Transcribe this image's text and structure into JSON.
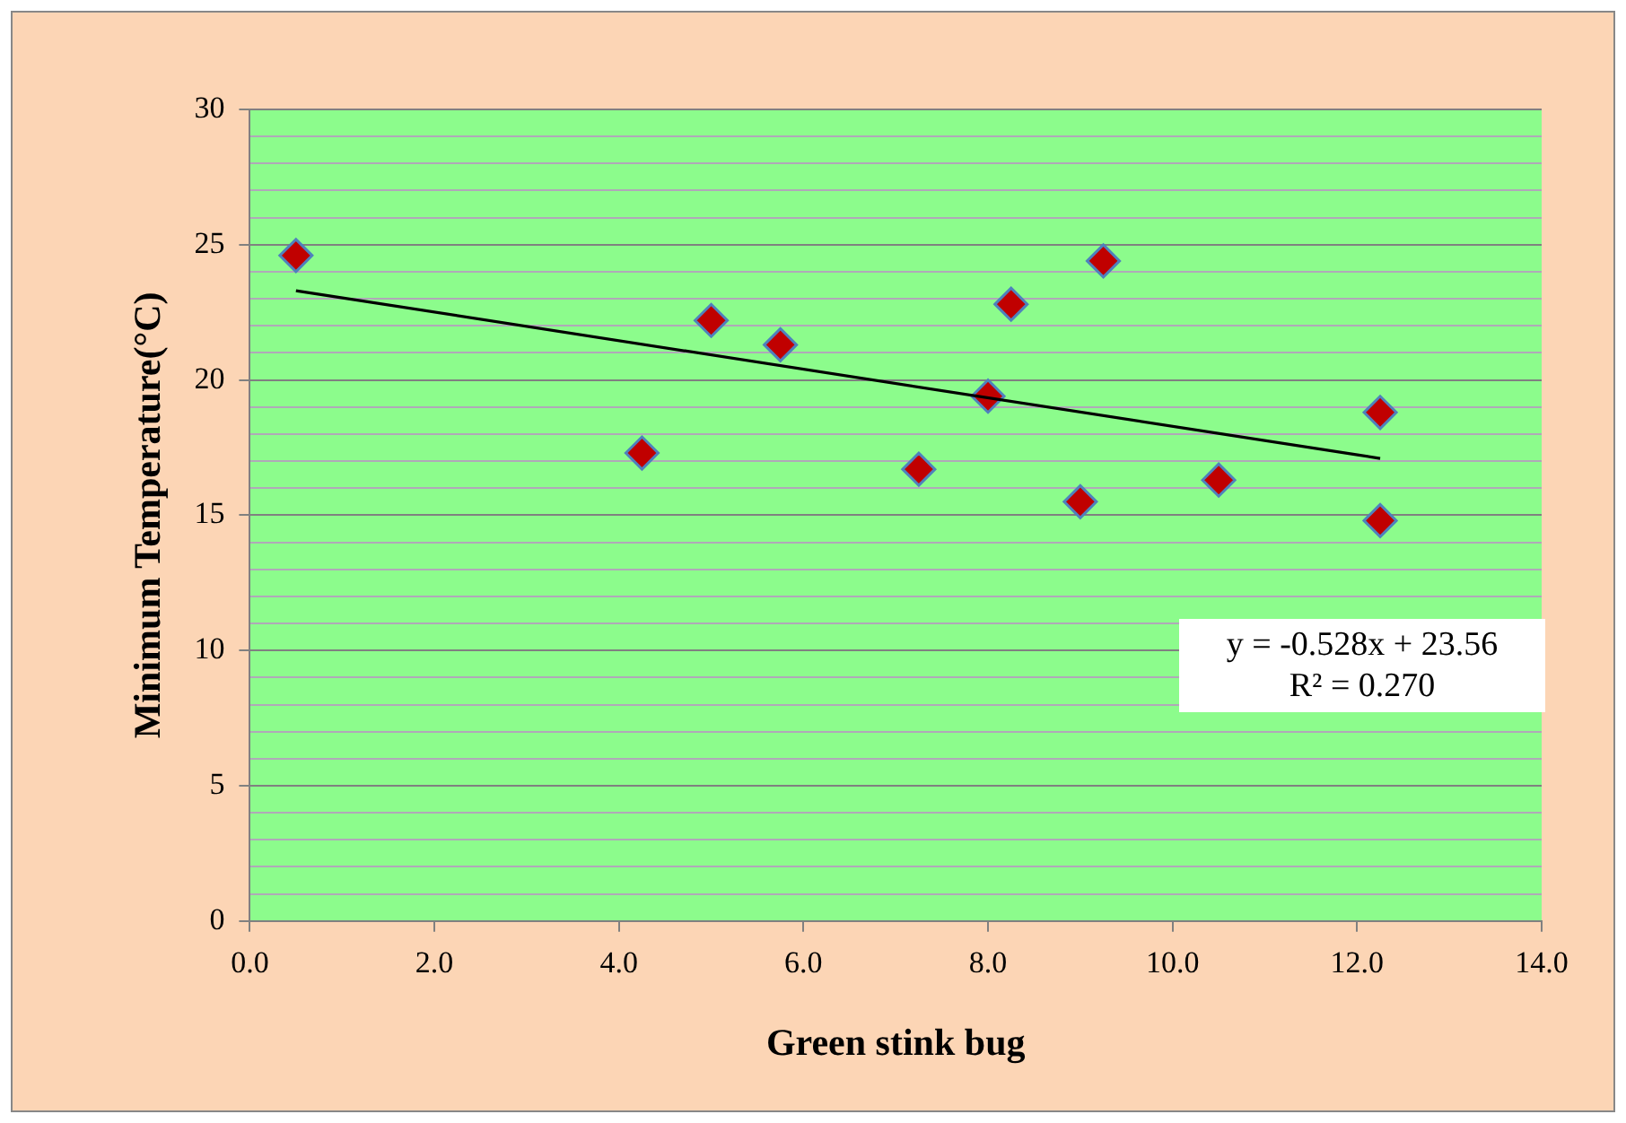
{
  "chart_data": {
    "type": "scatter",
    "xlabel": "Green stink bug",
    "ylabel": "Minimum Temperature(°C)",
    "x": [
      0.5,
      4.25,
      5,
      5.75,
      7.25,
      8,
      8.25,
      9,
      9.25,
      10.5,
      12.25,
      12.25
    ],
    "series": [
      {
        "color": "#c00000",
        "values": [
          24.6,
          17.3,
          22.2,
          21.3,
          16.7,
          19.4,
          22.8,
          15.5,
          24.4,
          16.3,
          18.8,
          14.8
        ]
      },
      {
        "type": "line",
        "color": "#000000",
        "marker": "none",
        "x": [
          0.5,
          12.25
        ],
        "values": [
          23.3,
          17.1
        ]
      }
    ],
    "marker": "diamond",
    "grid": "y",
    "xlim": [
      0,
      14
    ],
    "xticks": [
      {
        "value": 0,
        "label": "0.0"
      },
      {
        "value": 2,
        "label": "2.0"
      },
      {
        "value": 4,
        "label": "4.0"
      },
      {
        "value": 6,
        "label": "6.0"
      },
      {
        "value": 8,
        "label": "8.0"
      },
      {
        "value": 10,
        "label": "10.0"
      },
      {
        "value": 12,
        "label": "12.0"
      },
      {
        "value": 14,
        "label": "14.0"
      }
    ],
    "ylim": [
      0,
      30
    ],
    "yticks": [
      0,
      {
        "value": 1,
        "label": null
      },
      {
        "value": 2,
        "label": null
      },
      {
        "value": 3,
        "label": null
      },
      {
        "value": 4,
        "label": null
      },
      5,
      {
        "value": 6,
        "label": null
      },
      {
        "value": 7,
        "label": null
      },
      {
        "value": 8,
        "label": null
      },
      {
        "value": 9,
        "label": null
      },
      10,
      {
        "value": 11,
        "label": null
      },
      {
        "value": 12,
        "label": null
      },
      {
        "value": 13,
        "label": null
      },
      {
        "value": 14,
        "label": null
      },
      15,
      {
        "value": 16,
        "label": null
      },
      {
        "value": 17,
        "label": null
      },
      {
        "value": 18,
        "label": null
      },
      {
        "value": 19,
        "label": null
      },
      20,
      {
        "value": 21,
        "label": null
      },
      {
        "value": 22,
        "label": null
      },
      {
        "value": 23,
        "label": null
      },
      {
        "value": 24,
        "label": null
      },
      25,
      {
        "value": 26,
        "label": null
      },
      {
        "value": 27,
        "label": null
      },
      {
        "value": 28,
        "label": null
      },
      {
        "value": 29,
        "label": null
      },
      30
    ],
    "annotations": [
      "y = -0.528x + 23.56\nR² = 0.270"
    ]
  }
}
